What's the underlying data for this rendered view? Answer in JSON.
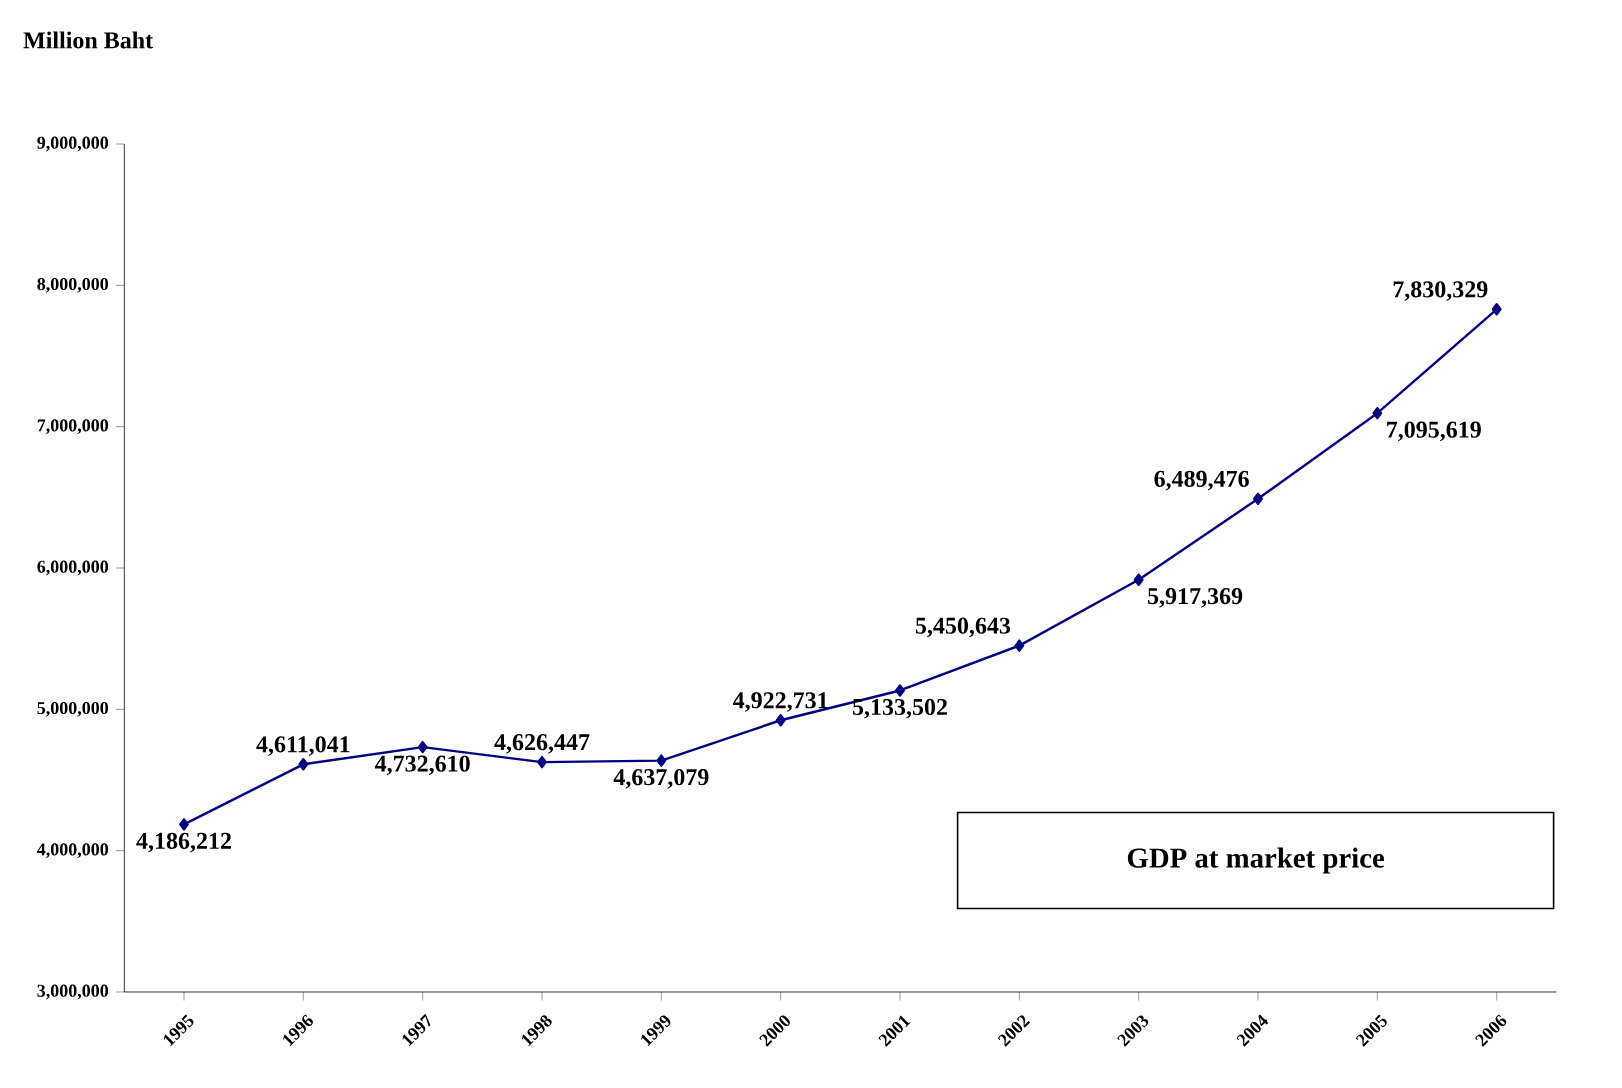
{
  "chart_data": {
    "type": "line",
    "ylabel": "Million Baht",
    "categories": [
      "1995",
      "1996",
      "1997",
      "1998",
      "1999",
      "2000",
      "2001",
      "2002",
      "2003",
      "2004",
      "2005",
      "2006"
    ],
    "values": [
      4186212,
      4611041,
      4732610,
      4626447,
      4637079,
      4922731,
      5133502,
      5450643,
      5917369,
      6489476,
      7095619,
      7830329
    ],
    "value_labels": [
      "4,186,212",
      "4,611,041",
      "4,732,610",
      "4,626,447",
      "4,637,079",
      "4,922,731",
      "5,133,502",
      "5,450,643",
      "5,917,369",
      "6,489,476",
      "7,095,619",
      "7,830,329"
    ],
    "color": "#000080",
    "marker": "diamond",
    "ylim": [
      3000000,
      9000000
    ],
    "yticks": [
      {
        "value": 3000000,
        "label": "3,000,000"
      },
      {
        "value": 4000000,
        "label": "4,000,000"
      },
      {
        "value": 5000000,
        "label": "5,000,000"
      },
      {
        "value": 6000000,
        "label": "6,000,000"
      },
      {
        "value": 7000000,
        "label": "7,000,000"
      },
      {
        "value": 8000000,
        "label": "8,000,000"
      },
      {
        "value": 9000000,
        "label": "9,000,000"
      }
    ],
    "annotations": [
      "GDP at market price"
    ]
  }
}
